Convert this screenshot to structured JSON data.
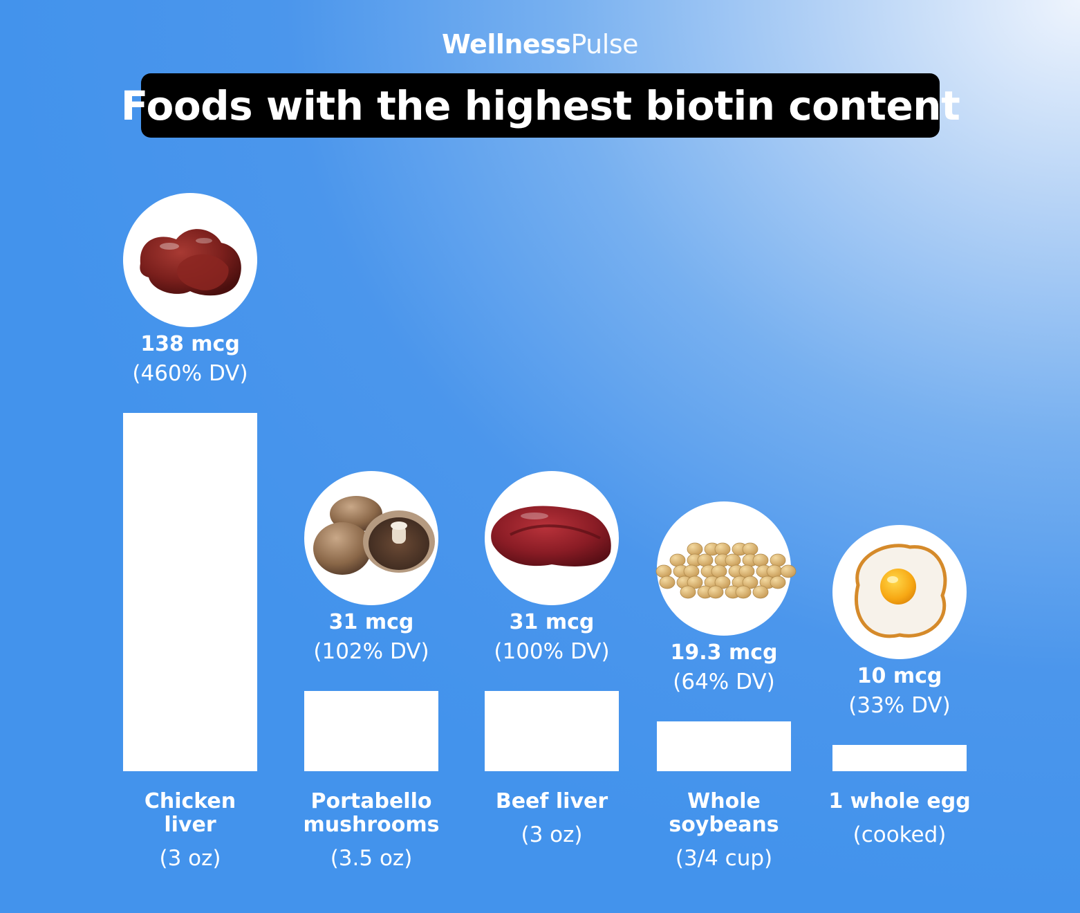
{
  "brand": {
    "part1": "Wellness",
    "part2": "Pulse"
  },
  "title": "Foods with the highest biotin content",
  "colors": {
    "background": "#4393ec",
    "bar": "#ffffff",
    "title_box": "#000000",
    "text": "#ffffff"
  },
  "chart_data": {
    "type": "bar",
    "title": "Foods with the highest biotin content",
    "unit": "mcg",
    "categories": [
      "Chicken liver",
      "Portabello mushrooms",
      "Beef liver",
      "Whole soybeans",
      "1 whole egg"
    ],
    "values": [
      138,
      31,
      31,
      19.3,
      10
    ],
    "bars": [
      {
        "category_lines": [
          "Chicken",
          "liver"
        ],
        "serving": "(3 oz)",
        "value": 138,
        "value_label": "138 mcg",
        "dv_label": "(460% DV)",
        "icon": "chicken-liver-icon"
      },
      {
        "category_lines": [
          "Portabello",
          "mushrooms"
        ],
        "serving": "(3.5 oz)",
        "value": 31,
        "value_label": "31 mcg",
        "dv_label": "(102% DV)",
        "icon": "portabello-mushrooms-icon"
      },
      {
        "category_lines": [
          "Beef liver"
        ],
        "serving": "(3 oz)",
        "value": 31,
        "value_label": "31 mcg",
        "dv_label": "(100% DV)",
        "icon": "beef-liver-icon"
      },
      {
        "category_lines": [
          "Whole",
          "soybeans"
        ],
        "serving": "(3/4 cup)",
        "value": 19.3,
        "value_label": "19.3 mcg",
        "dv_label": "(64% DV)",
        "icon": "soybeans-icon"
      },
      {
        "category_lines": [
          "1 whole egg"
        ],
        "serving": "(cooked)",
        "value": 10,
        "value_label": "10 mcg",
        "dv_label": "(33% DV)",
        "icon": "fried-egg-icon"
      }
    ],
    "grid": false,
    "legend": "none"
  }
}
